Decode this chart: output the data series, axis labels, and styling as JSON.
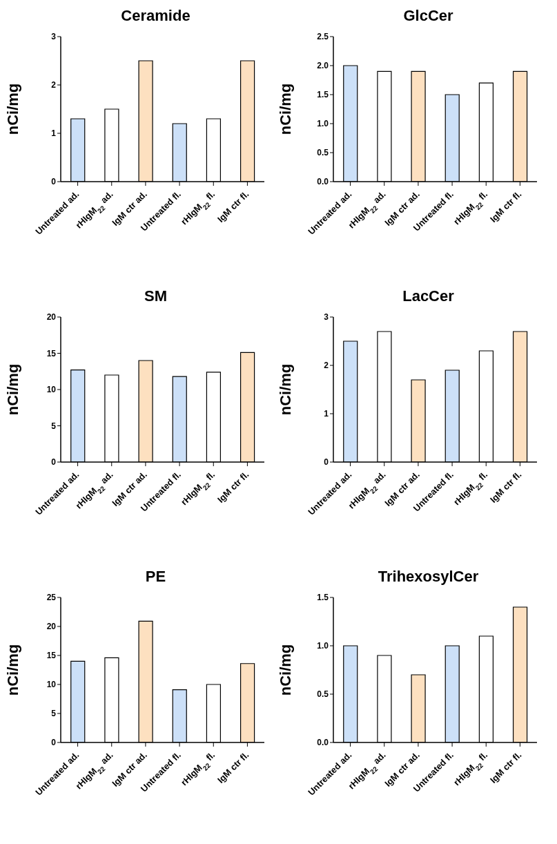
{
  "chart_data": [
    {
      "type": "bar",
      "title": "Ceramide",
      "ylabel": "nCi/mg",
      "categories": [
        "Untreated ad.",
        "rHIgM$_{22}$ ad.",
        "IgM ctr ad.",
        "Untreated fl.",
        "rHIgM$_{22}$ fl.",
        "IgM ctr fl."
      ],
      "values": [
        1.3,
        1.5,
        2.5,
        1.2,
        1.3,
        2.5
      ],
      "colors": [
        "#cce0f8",
        "#ffffff",
        "#fde0c0",
        "#cce0f8",
        "#ffffff",
        "#fde0c0"
      ],
      "ylim": [
        0,
        3
      ],
      "yticks": [
        0,
        1,
        2,
        3
      ]
    },
    {
      "type": "bar",
      "title": "GlcCer",
      "ylabel": "nCi/mg",
      "categories": [
        "Untreated ad.",
        "rHIgM$_{22}$ ad.",
        "IgM ctr ad.",
        "Untreated fl.",
        "rHIgM$_{22}$ fl.",
        "IgM ctr fl."
      ],
      "values": [
        2.0,
        1.9,
        1.9,
        1.5,
        1.7,
        1.9
      ],
      "colors": [
        "#cce0f8",
        "#ffffff",
        "#fde0c0",
        "#cce0f8",
        "#ffffff",
        "#fde0c0"
      ],
      "ylim": [
        0,
        2.5
      ],
      "yticks": [
        {
          "value": 0,
          "label": "0.0"
        },
        {
          "value": 0.5,
          "label": "0.5"
        },
        {
          "value": 1,
          "label": "1.0"
        },
        {
          "value": 1.5,
          "label": "1.5"
        },
        {
          "value": 2,
          "label": "2.0"
        },
        {
          "value": 2.5,
          "label": "2.5"
        }
      ]
    },
    {
      "type": "bar",
      "title": "SM",
      "ylabel": "nCi/mg",
      "categories": [
        "Untreated ad.",
        "rHIgM$_{22}$ ad.",
        "IgM ctr ad.",
        "Untreated fl.",
        "rHIgM$_{22}$ fl.",
        "IgM ctr fl."
      ],
      "values": [
        12.7,
        12.0,
        14.0,
        11.8,
        12.4,
        15.1
      ],
      "colors": [
        "#cce0f8",
        "#ffffff",
        "#fde0c0",
        "#cce0f8",
        "#ffffff",
        "#fde0c0"
      ],
      "ylim": [
        0,
        20
      ],
      "yticks": [
        0,
        5,
        10,
        15,
        20
      ]
    },
    {
      "type": "bar",
      "title": "LacCer",
      "ylabel": "nCi/mg",
      "categories": [
        "Untreated ad.",
        "rHIgM$_{22}$ ad.",
        "IgM ctr ad.",
        "Untreated fl.",
        "rHIgM$_{22}$ fl.",
        "IgM ctr fl."
      ],
      "values": [
        2.5,
        2.7,
        1.7,
        1.9,
        2.3,
        2.7
      ],
      "colors": [
        "#cce0f8",
        "#ffffff",
        "#fde0c0",
        "#cce0f8",
        "#ffffff",
        "#fde0c0"
      ],
      "ylim": [
        0,
        3
      ],
      "yticks": [
        0,
        1,
        2,
        3
      ]
    },
    {
      "type": "bar",
      "title": "PE",
      "ylabel": "nCi/mg",
      "categories": [
        "Untreated ad.",
        "rHIgM$_{22}$ ad.",
        "IgM ctr ad.",
        "Untreated fl.",
        "rHIgM$_{22}$ fl.",
        "IgM ctr fl."
      ],
      "values": [
        14.0,
        14.6,
        20.9,
        9.1,
        10.0,
        13.6
      ],
      "colors": [
        "#cce0f8",
        "#ffffff",
        "#fde0c0",
        "#cce0f8",
        "#ffffff",
        "#fde0c0"
      ],
      "ylim": [
        0,
        25
      ],
      "yticks": [
        0,
        5,
        10,
        15,
        20,
        25
      ]
    },
    {
      "type": "bar",
      "title": "TrihexosylCer",
      "ylabel": "nCi/mg",
      "categories": [
        "Untreated ad.",
        "rHIgM$_{22}$ ad.",
        "IgM ctr ad.",
        "Untreated fl.",
        "rHIgM$_{22}$ fl.",
        "IgM ctr fl."
      ],
      "values": [
        1.0,
        0.9,
        0.7,
        1.0,
        1.1,
        1.4
      ],
      "colors": [
        "#cce0f8",
        "#ffffff",
        "#fde0c0",
        "#cce0f8",
        "#ffffff",
        "#fde0c0"
      ],
      "ylim": [
        0,
        1.5
      ],
      "yticks": [
        {
          "value": 0,
          "label": "0.0"
        },
        {
          "value": 0.5,
          "label": "0.5"
        },
        {
          "value": 1,
          "label": "1.0"
        },
        {
          "value": 1.5,
          "label": "1.5"
        }
      ]
    }
  ]
}
